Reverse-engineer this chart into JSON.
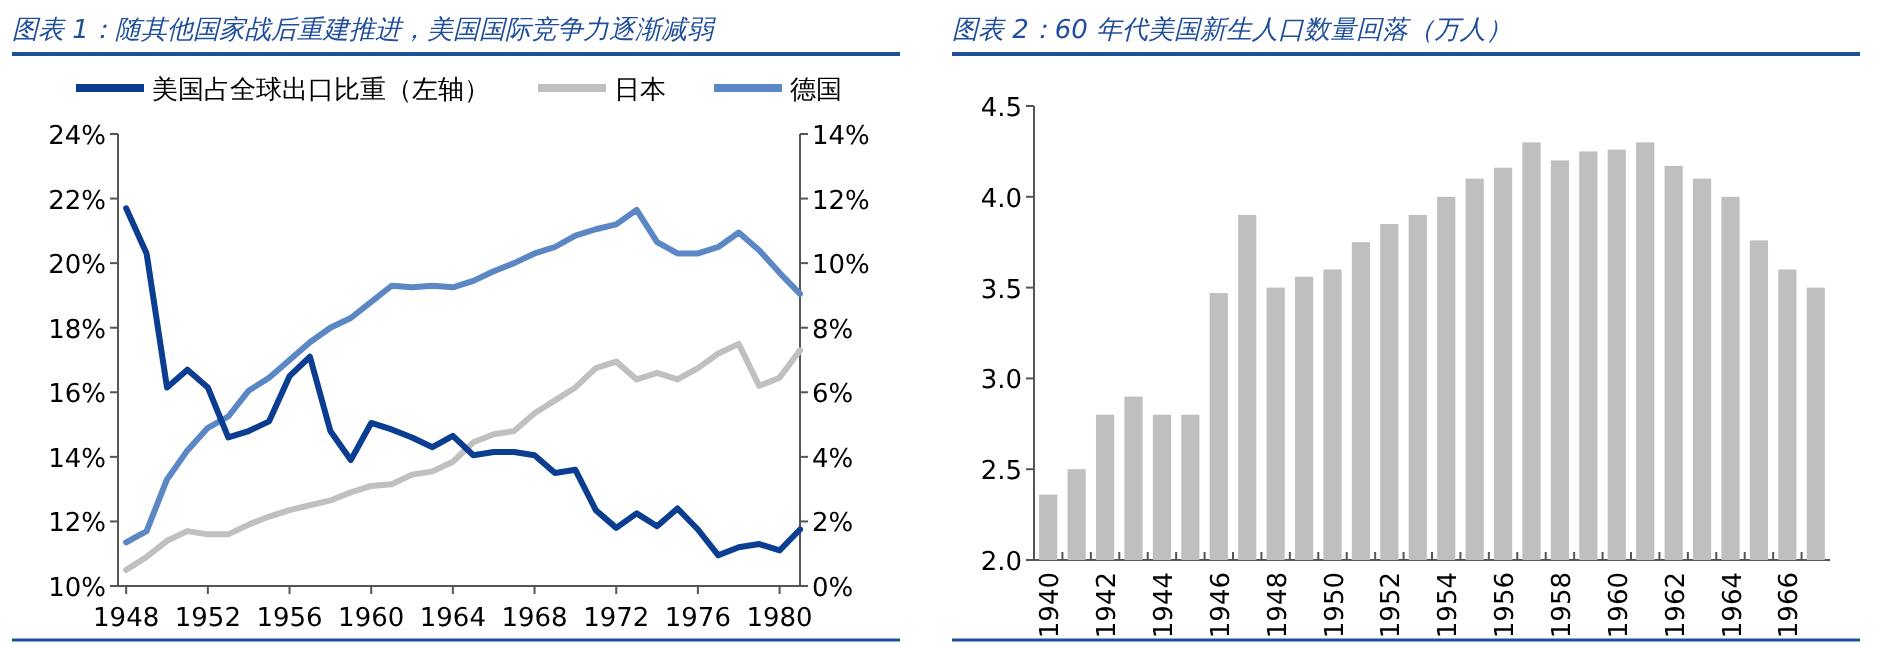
{
  "chart_data": [
    {
      "type": "line",
      "title": "图表 1：随其他国家战后重建推进，美国国际竞争力逐渐减弱",
      "legend": "top",
      "xlim": [
        1947.6,
        1981
      ],
      "xticks": [
        1948,
        1952,
        1956,
        1960,
        1964,
        1968,
        1972,
        1976,
        1980
      ],
      "ylim": [
        10,
        24
      ],
      "yticks": [
        {
          "value": 10,
          "label": "10%"
        },
        {
          "value": 12,
          "label": "12%"
        },
        {
          "value": 14,
          "label": "14%"
        },
        {
          "value": 16,
          "label": "16%"
        },
        {
          "value": 18,
          "label": "18%"
        },
        {
          "value": 20,
          "label": "20%"
        },
        {
          "value": 22,
          "label": "22%"
        },
        {
          "value": 24,
          "label": "24%"
        }
      ],
      "y2lim": [
        0,
        14
      ],
      "y2ticks": [
        {
          "value": 0,
          "label": "0%"
        },
        {
          "value": 2,
          "label": "2%"
        },
        {
          "value": 4,
          "label": "4%"
        },
        {
          "value": 6,
          "label": "6%"
        },
        {
          "value": 8,
          "label": "8%"
        },
        {
          "value": 10,
          "label": "10%"
        },
        {
          "value": 12,
          "label": "12%"
        },
        {
          "value": 14,
          "label": "14%"
        }
      ],
      "x": [
        1948,
        1949,
        1950,
        1951,
        1952,
        1953,
        1954,
        1955,
        1956,
        1957,
        1958,
        1959,
        1960,
        1961,
        1962,
        1963,
        1964,
        1965,
        1966,
        1967,
        1968,
        1969,
        1970,
        1971,
        1972,
        1973,
        1974,
        1975,
        1976,
        1977,
        1978,
        1979,
        1980,
        1981
      ],
      "series": [
        {
          "name": "美国占全球出口比重（左轴）",
          "color": "#0b3d91",
          "values": [
            21.7,
            20.3,
            16.15,
            16.7,
            16.15,
            14.6,
            14.8,
            15.1,
            16.5,
            17.1,
            14.8,
            13.9,
            15.05,
            14.85,
            14.6,
            14.3,
            14.65,
            14.05,
            14.15,
            14.15,
            14.05,
            13.5,
            13.6,
            12.35,
            11.8,
            12.25,
            11.85,
            12.4,
            11.75,
            10.95,
            11.2,
            11.3,
            11.1,
            11.75
          ]
        },
        {
          "name": "日本",
          "color": "#c0c0c0",
          "axis": "y2",
          "values": [
            0.5,
            0.9,
            1.4,
            1.7,
            1.6,
            1.6,
            1.9,
            2.15,
            2.35,
            2.5,
            2.65,
            2.9,
            3.1,
            3.15,
            3.45,
            3.55,
            3.85,
            4.45,
            4.7,
            4.8,
            5.35,
            5.75,
            6.15,
            6.75,
            6.95,
            6.4,
            6.6,
            6.4,
            6.75,
            7.2,
            7.5,
            6.2,
            6.45,
            7.3
          ]
        },
        {
          "name": "德国",
          "color": "#5b87c5",
          "axis": "y2",
          "values": [
            1.35,
            1.7,
            3.3,
            4.2,
            4.9,
            5.25,
            6.05,
            6.45,
            7.0,
            7.55,
            8.0,
            8.3,
            8.8,
            9.3,
            9.25,
            9.3,
            9.25,
            9.45,
            9.75,
            10.0,
            10.3,
            10.5,
            10.85,
            11.05,
            11.2,
            11.65,
            10.65,
            10.3,
            10.3,
            10.5,
            10.95,
            10.4,
            9.7,
            9.05
          ]
        }
      ]
    },
    {
      "type": "bar",
      "title": "图表 2：60 年代美国新生人口数量回落（万人）",
      "color": "#bfbfbf",
      "categories": [
        "1940",
        null,
        "1942",
        null,
        "1944",
        null,
        "1946",
        null,
        "1948",
        null,
        "1950",
        null,
        "1952",
        null,
        "1954",
        null,
        "1956",
        null,
        "1958",
        null,
        "1960",
        null,
        "1962",
        null,
        "1964",
        null,
        "1966",
        null
      ],
      "values": [
        2.36,
        2.5,
        2.8,
        2.9,
        2.8,
        2.8,
        3.47,
        3.9,
        3.5,
        3.56,
        3.6,
        3.75,
        3.85,
        3.9,
        4.0,
        4.1,
        4.16,
        4.3,
        4.2,
        4.25,
        4.26,
        4.3,
        4.17,
        4.1,
        4.0,
        3.76,
        3.6,
        3.5
      ],
      "ylim": [
        2,
        4.5
      ],
      "yticks": [
        {
          "value": 2,
          "label": "2.0"
        },
        2.5,
        {
          "value": 3,
          "label": "3.0"
        },
        3.5,
        {
          "value": 4,
          "label": "4.0"
        },
        4.5
      ]
    }
  ]
}
